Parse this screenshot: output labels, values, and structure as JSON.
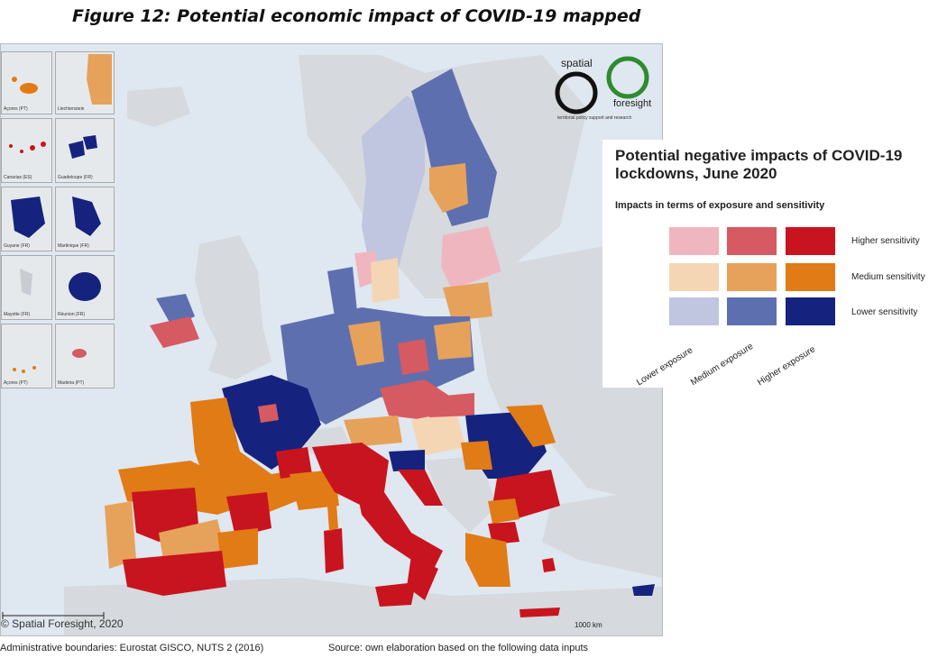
{
  "figure_title": "Figure 12: Potential economic impact of COVID-19 mapped",
  "legend": {
    "title": "Potential negative impacts of COVID-19 lockdowns, June 2020",
    "subtitle": "Impacts in terms of exposure and sensitivity",
    "rows": [
      "Higher sensitivity",
      "Medium sensitivity",
      "Lower sensitivity"
    ],
    "columns": [
      "Lower exposure",
      "Medium exposure",
      "Higher exposure"
    ],
    "colors": [
      [
        "#f0b6bf",
        "#d65a61",
        "#c8141e"
      ],
      [
        "#f5d6b4",
        "#e6a25a",
        "#e07b16"
      ],
      [
        "#c0c5e0",
        "#5e6fb0",
        "#15237e"
      ]
    ]
  },
  "logo": {
    "word1": "spatial",
    "word2": "foresight",
    "tagline": "territorial policy support and research"
  },
  "insets": [
    {
      "label": "Açores (PT)"
    },
    {
      "label": "Liechtenstein"
    },
    {
      "label": "Canarias (ES)"
    },
    {
      "label": "Guadeloupe (FR)"
    },
    {
      "label": "Guyane (FR)"
    },
    {
      "label": "Martinique (FR)"
    },
    {
      "label": "Mayotte (FR)"
    },
    {
      "label": "Réunion (FR)"
    },
    {
      "label": "Açores (PT)"
    },
    {
      "label": "Madeira (PT)"
    }
  ],
  "copyright": "© Spatial Foresight, 2020",
  "scale_label": "1000 km",
  "footer_left": "Administrative boundaries: Eurostat GISCO, NUTS 2 (2016)",
  "footer_right": "Source: own elaboration based on the following data inputs"
}
